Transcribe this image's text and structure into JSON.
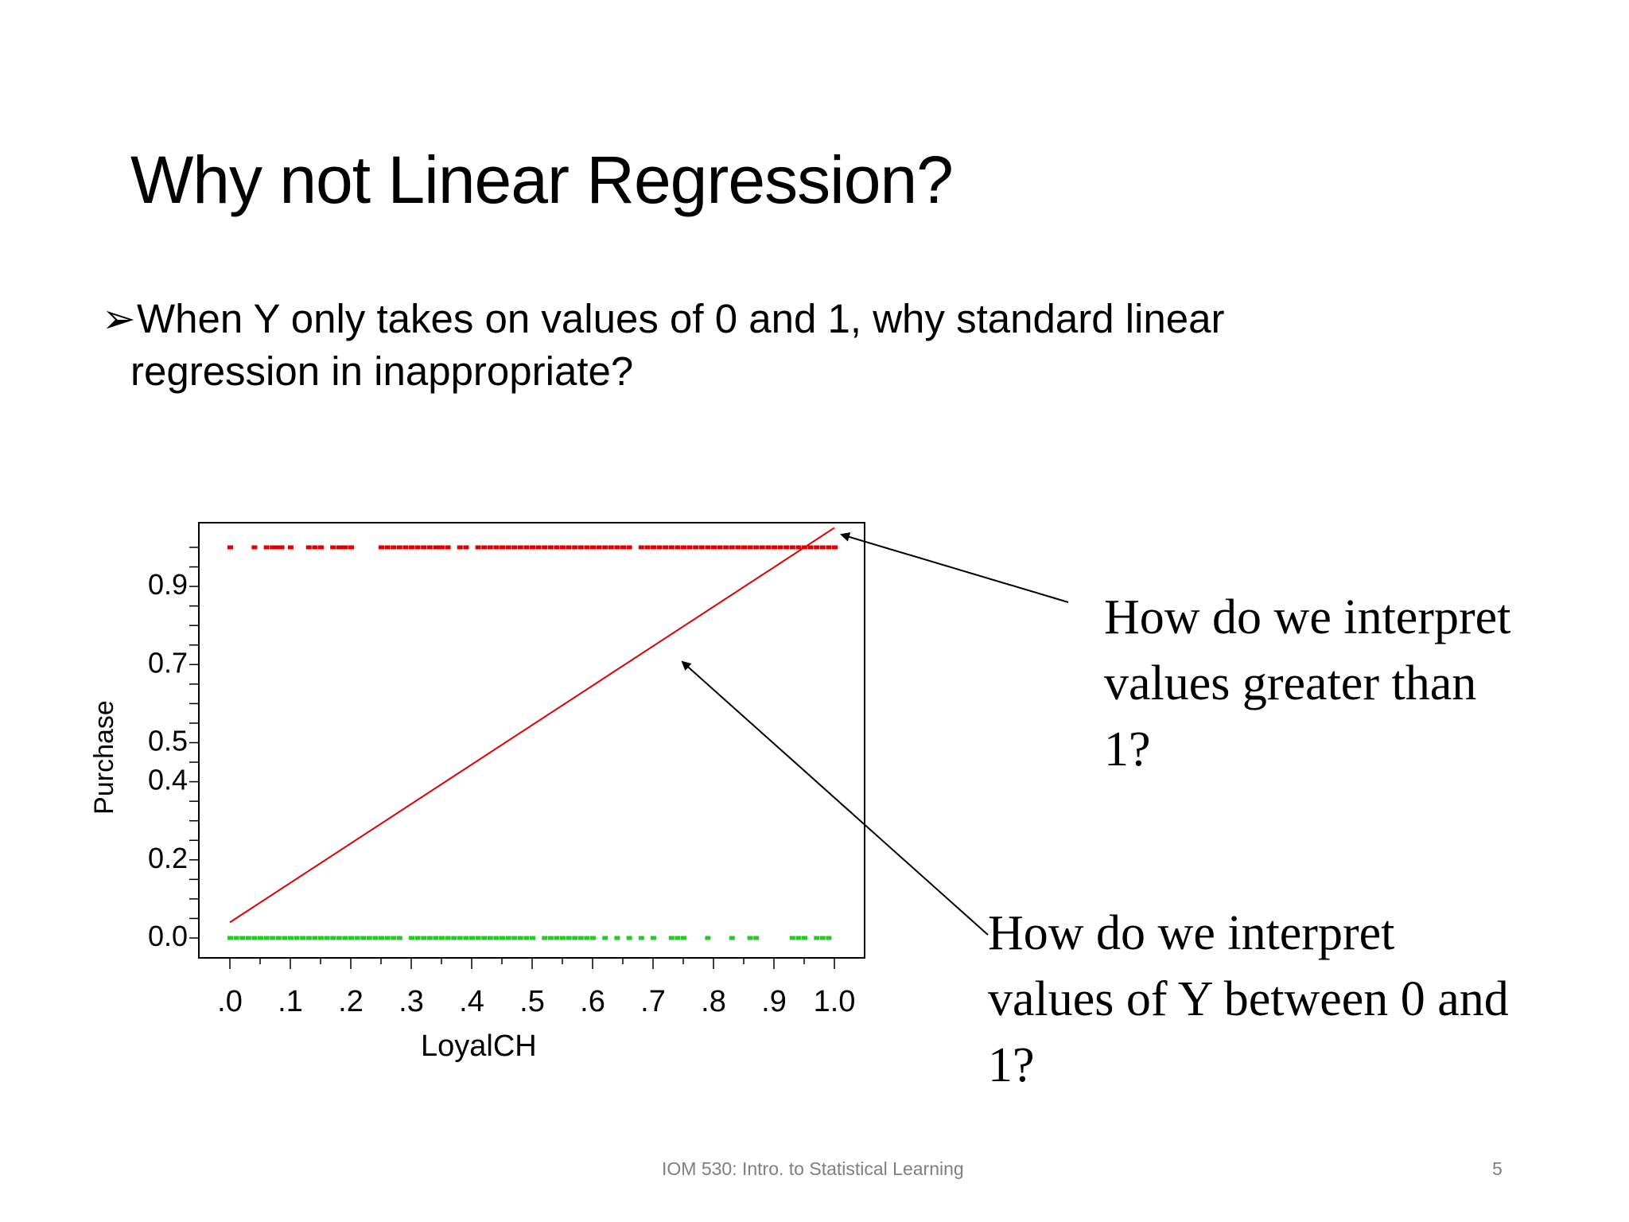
{
  "slide": {
    "title": "Why not Linear Regression?",
    "bullet_marker": "➢",
    "bullet_line1": "When Y only takes on values of 0 and 1, why standard linear",
    "bullet_line2": "regression in inappropriate?",
    "annotation_1": "How do we interpret values greater than 1?",
    "annotation_2": "How do we interpret values of Y between 0 and 1?",
    "footer": "IOM 530: Intro. to Statistical Learning",
    "page_number": "5"
  },
  "colors": {
    "purchase_1": "#e00000",
    "purchase_0": "#22cc22",
    "fit_line": "#dd0000",
    "axis": "#000000"
  },
  "chart_data": {
    "type": "scatter",
    "xlabel": "LoyalCH",
    "ylabel": "Purchase",
    "x_tick_labels": [
      ".0",
      ".1",
      ".2",
      ".3",
      ".4",
      ".5",
      ".6",
      ".7",
      ".8",
      ".9",
      "1.0"
    ],
    "x_ticks": [
      0,
      0.1,
      0.2,
      0.3,
      0.4,
      0.5,
      0.6,
      0.7,
      0.8,
      0.9,
      1.0
    ],
    "y_tick_labels": [
      "0.0",
      "0.2",
      "0.4",
      "0.5",
      "0.7",
      "0.9"
    ],
    "y_ticks": [
      0,
      0.2,
      0.4,
      0.5,
      0.7,
      0.9
    ],
    "xlim": [
      -0.05,
      1.05
    ],
    "ylim": [
      -0.05,
      1.05
    ],
    "series": [
      {
        "y": 1,
        "x": [
          0.0,
          0.04,
          0.06,
          0.07,
          0.075,
          0.08,
          0.085,
          0.1,
          0.13,
          0.14,
          0.15,
          0.17,
          0.18,
          0.185,
          0.19,
          0.2,
          0.25,
          0.26,
          0.27,
          0.28,
          0.29,
          0.3,
          0.31,
          0.32,
          0.33,
          0.34,
          0.345,
          0.35,
          0.36,
          0.38,
          0.39,
          0.41,
          0.42,
          0.43,
          0.44,
          0.45,
          0.46,
          0.47,
          0.48,
          0.49,
          0.5,
          0.51,
          0.52,
          0.53,
          0.54,
          0.55,
          0.56,
          0.57,
          0.58,
          0.59,
          0.6,
          0.61,
          0.62,
          0.63,
          0.64,
          0.65,
          0.66,
          0.68,
          0.69,
          0.7,
          0.71,
          0.72,
          0.73,
          0.74,
          0.75,
          0.76,
          0.77,
          0.78,
          0.79,
          0.8,
          0.81,
          0.82,
          0.83,
          0.84,
          0.85,
          0.86,
          0.87,
          0.88,
          0.89,
          0.9,
          0.91,
          0.92,
          0.93,
          0.94,
          0.95,
          0.96,
          0.97,
          0.98,
          0.99,
          1.0
        ]
      },
      {
        "y": 0,
        "x": [
          0.0,
          0.01,
          0.02,
          0.03,
          0.04,
          0.05,
          0.06,
          0.07,
          0.08,
          0.09,
          0.1,
          0.11,
          0.12,
          0.13,
          0.14,
          0.15,
          0.16,
          0.17,
          0.18,
          0.19,
          0.2,
          0.21,
          0.22,
          0.23,
          0.24,
          0.25,
          0.26,
          0.27,
          0.28,
          0.3,
          0.31,
          0.32,
          0.33,
          0.34,
          0.35,
          0.36,
          0.37,
          0.38,
          0.39,
          0.4,
          0.41,
          0.42,
          0.43,
          0.44,
          0.45,
          0.46,
          0.47,
          0.48,
          0.49,
          0.5,
          0.52,
          0.53,
          0.54,
          0.55,
          0.56,
          0.57,
          0.58,
          0.59,
          0.6,
          0.62,
          0.64,
          0.66,
          0.68,
          0.7,
          0.73,
          0.74,
          0.75,
          0.79,
          0.83,
          0.86,
          0.87,
          0.93,
          0.94,
          0.95,
          0.97,
          0.98,
          0.99
        ]
      }
    ],
    "fit_line": {
      "x": [
        0.0,
        1.0
      ],
      "y": [
        0.04,
        1.05
      ]
    }
  }
}
